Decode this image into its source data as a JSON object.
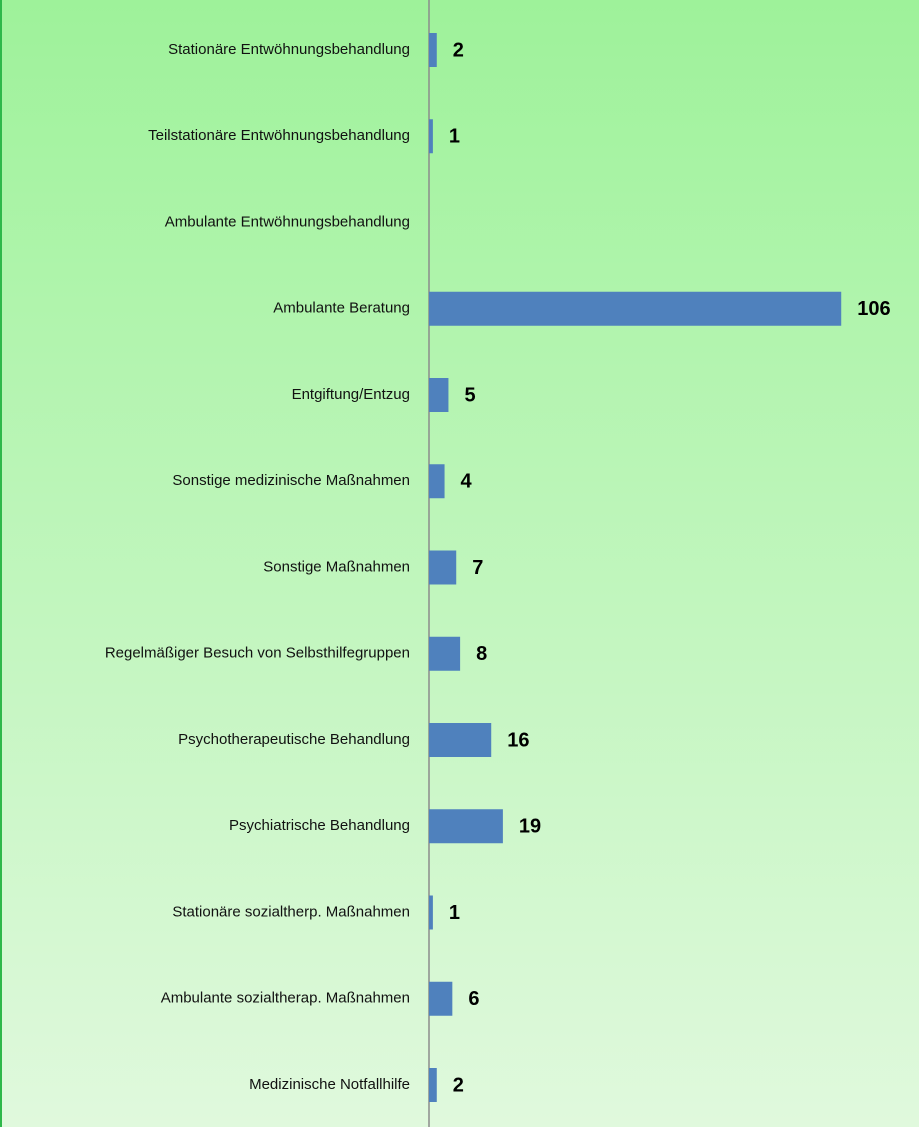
{
  "chart_data": {
    "type": "bar",
    "orientation": "horizontal",
    "categories": [
      "Stationäre Entwöhnungsbehandlung",
      "Teilstationäre Entwöhnungsbehandlung",
      "Ambulante Entwöhnungsbehandlung",
      "Ambulante Beratung",
      "Entgiftung/Entzug",
      "Sonstige medizinische Maßnahmen",
      "Sonstige Maßnahmen",
      "Regelmäßiger Besuch von Selbsthilfegruppen",
      "Psychotherapeutische Behandlung",
      "Psychiatrische Behandlung",
      "Stationäre sozialtherp. Maßnahmen",
      "Ambulante sozialtherap. Maßnahmen",
      "Medizinische Notfallhilfe"
    ],
    "values": [
      2,
      1,
      null,
      106,
      5,
      4,
      7,
      8,
      16,
      19,
      1,
      6,
      2
    ],
    "color": "#4f81bd",
    "xlim": [
      0,
      126
    ]
  }
}
